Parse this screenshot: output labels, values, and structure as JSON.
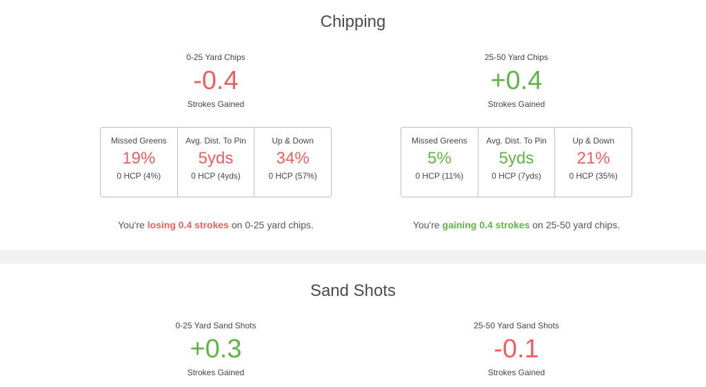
{
  "chipping": {
    "title": "Chipping",
    "left": {
      "category": "0-25 Yard Chips",
      "value": "-0.4",
      "value_label": "Strokes Gained",
      "stats": [
        {
          "label": "Missed Greens",
          "value": "19%",
          "hcp": "0 HCP (4%)"
        },
        {
          "label": "Avg. Dist. To Pin",
          "value": "5yds",
          "hcp": "0 HCP (4yds)"
        },
        {
          "label": "Up & Down",
          "value": "34%",
          "hcp": "0 HCP (57%)"
        }
      ],
      "summary_prefix": "You're ",
      "summary_highlight": "losing 0.4 strokes",
      "summary_suffix": " on 0-25 yard chips."
    },
    "right": {
      "category": "25-50 Yard Chips",
      "value": "+0.4",
      "value_label": "Strokes Gained",
      "stats": [
        {
          "label": "Missed Greens",
          "value": "5%",
          "hcp": "0 HCP (11%)"
        },
        {
          "label": "Avg. Dist. To Pin",
          "value": "5yds",
          "hcp": "0 HCP (7yds)"
        },
        {
          "label": "Up & Down",
          "value": "21%",
          "hcp": "0 HCP (35%)"
        }
      ],
      "summary_prefix": "You're ",
      "summary_highlight": "gaining 0.4 strokes",
      "summary_suffix": " on 25-50 yard chips."
    }
  },
  "sand": {
    "title": "Sand Shots",
    "left": {
      "category": "0-25 Yard Sand Shots",
      "value": "+0.3",
      "value_label": "Strokes Gained"
    },
    "right": {
      "category": "25-50 Yard Sand Shots",
      "value": "-0.1",
      "value_label": "Strokes Gained"
    }
  },
  "colors": {
    "negative": "#e86060",
    "positive": "#62b24a",
    "band": "#f1f1f1"
  }
}
